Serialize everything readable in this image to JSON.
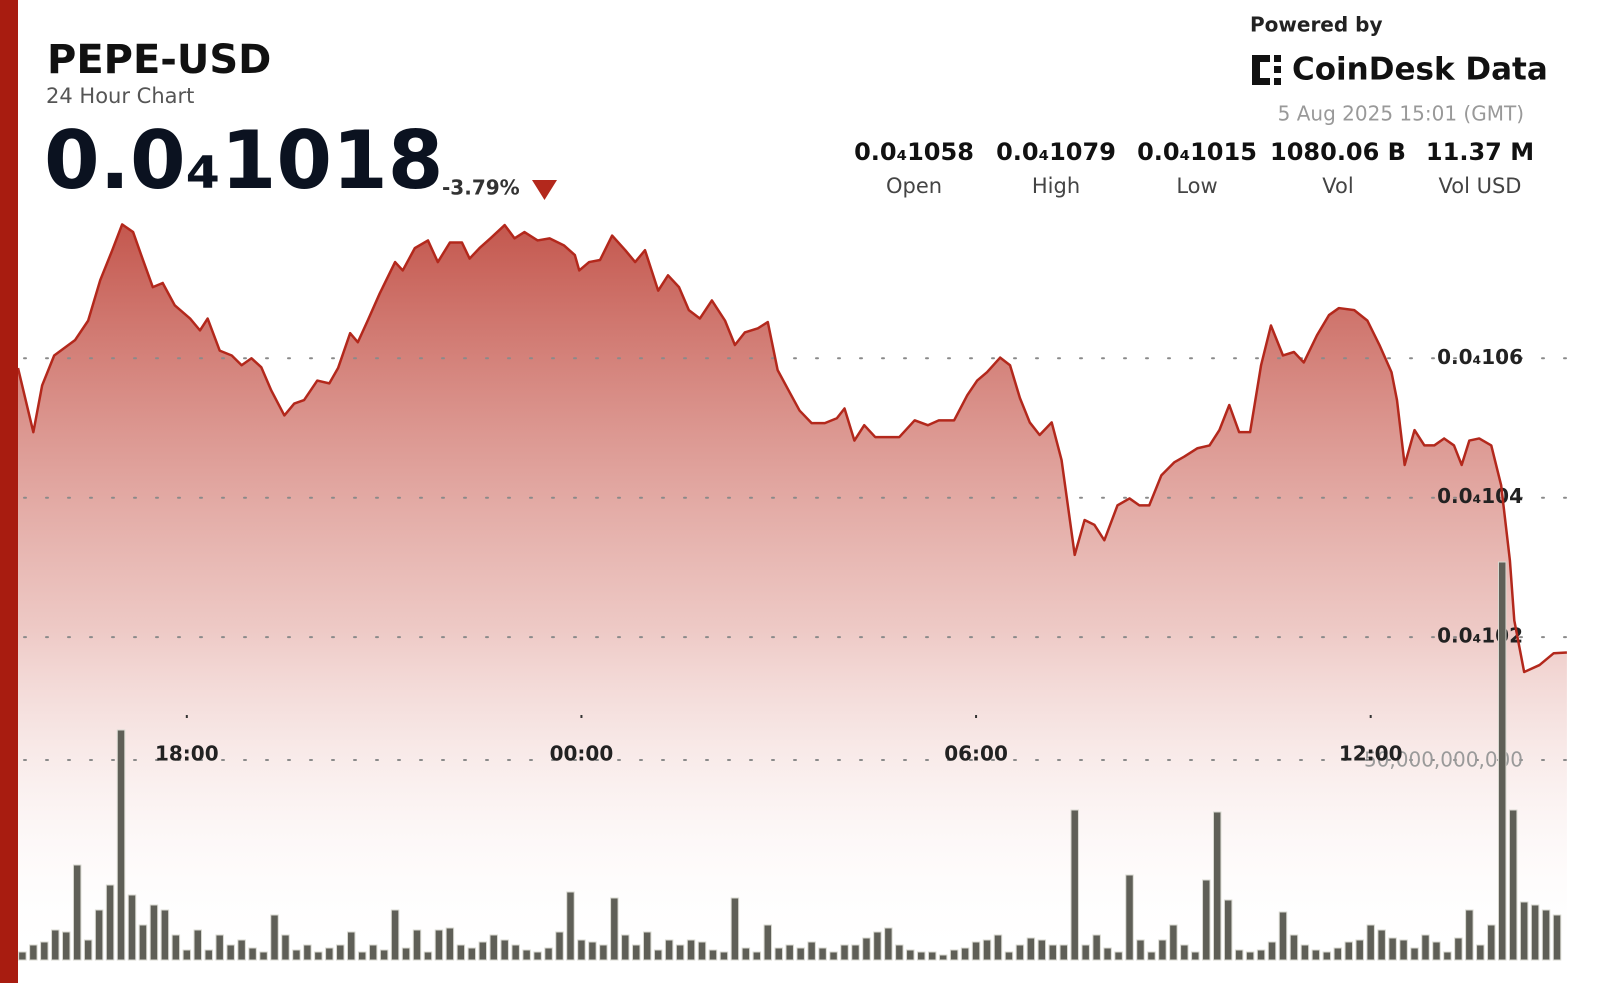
{
  "chart_data": {
    "type": "area",
    "title": "PEPE-USD",
    "subtitle": "24 Hour Chart",
    "price_label": "0.0₄1018",
    "change": "-3.79%",
    "powered_by": "Powered by",
    "brand": "CoinDesk Data",
    "timestamp": "5 Aug 2025 15:01 (GMT)",
    "stats": [
      {
        "value": "0.0₄1058",
        "label": "Open"
      },
      {
        "value": "0.0₄1079",
        "label": "High"
      },
      {
        "value": "0.0₄1015",
        "label": "Low"
      },
      {
        "value": "1080.06 B",
        "label": "Vol"
      },
      {
        "value": "11.37 M",
        "label": "Vol USD"
      }
    ],
    "xlim": [
      26,
      1440
    ],
    "xticks": [
      {
        "value": 180,
        "label": "18:00"
      },
      {
        "value": 540,
        "label": "00:00"
      },
      {
        "value": 900,
        "label": "06:00"
      },
      {
        "value": 1260,
        "label": "12:00"
      }
    ],
    "ylim": [
      9.737e-06,
      1.0827e-05
    ],
    "yticks": [
      {
        "value": 1.02e-05,
        "label": "0.0₄102"
      },
      {
        "value": 1.04e-05,
        "label": "0.0₄104"
      },
      {
        "value": 1.06e-05,
        "label": "0.0₄106"
      }
    ],
    "y2lim": [
      0,
      100000000000.0
    ],
    "y2ticks": [
      {
        "value": 50000000000.0,
        "label": "50,000,000,000"
      }
    ],
    "grid": true,
    "series": [
      {
        "color": "#b3281c",
        "x": [
          26,
          40,
          48,
          59,
          78,
          90,
          101,
          112,
          121,
          131,
          140,
          149,
          158,
          169,
          183,
          192,
          199,
          210,
          221,
          230,
          239,
          248,
          257,
          269,
          278,
          287,
          299,
          310,
          318,
          329,
          336,
          345,
          356,
          370,
          377,
          388,
          400,
          409,
          420,
          431,
          438,
          447,
          457,
          470,
          479,
          488,
          500,
          511,
          524,
          534,
          538,
          547,
          557,
          568,
          580,
          589,
          598,
          610,
          619,
          629,
          638,
          648,
          659,
          671,
          680,
          689,
          701,
          710,
          719,
          730,
          739,
          750,
          762,
          773,
          780,
          789,
          798,
          808,
          830,
          844,
          856,
          866,
          880,
          892,
          901,
          910,
          922,
          931,
          940,
          949,
          958,
          969,
          978,
          990,
          999,
          1008,
          1017,
          1029,
          1040,
          1049,
          1058,
          1069,
          1081,
          1090,
          1102,
          1113,
          1122,
          1131,
          1140,
          1150,
          1160,
          1169,
          1180,
          1190,
          1199,
          1211,
          1222,
          1231,
          1245,
          1257,
          1268,
          1279,
          1284,
          1291,
          1300,
          1309,
          1318,
          1327,
          1336,
          1343,
          1350,
          1359,
          1370,
          1379,
          1387,
          1391,
          1400,
          1414,
          1427,
          1439
        ],
        "values": [
          1.0586e-05,
          1.0494e-05,
          1.0561e-05,
          1.0604e-05,
          1.0626e-05,
          1.0654e-05,
          1.0712e-05,
          1.0755e-05,
          1.0792e-05,
          1.0781e-05,
          1.0741e-05,
          1.0702e-05,
          1.0708e-05,
          1.0676e-05,
          1.0657e-05,
          1.064e-05,
          1.0657e-05,
          1.0611e-05,
          1.0604e-05,
          1.059e-05,
          1.06e-05,
          1.0587e-05,
          1.0554e-05,
          1.0518e-05,
          1.0535e-05,
          1.054e-05,
          1.0568e-05,
          1.0564e-05,
          1.0586e-05,
          1.0636e-05,
          1.0623e-05,
          1.0654e-05,
          1.0693e-05,
          1.0738e-05,
          1.0726e-05,
          1.0758e-05,
          1.0769e-05,
          1.0738e-05,
          1.0766e-05,
          1.0766e-05,
          1.0743e-05,
          1.0758e-05,
          1.0772e-05,
          1.0791e-05,
          1.0772e-05,
          1.0781e-05,
          1.0769e-05,
          1.0772e-05,
          1.0762e-05,
          1.0748e-05,
          1.0726e-05,
          1.0738e-05,
          1.0741e-05,
          1.0776e-05,
          1.0755e-05,
          1.0738e-05,
          1.0755e-05,
          1.0697e-05,
          1.0719e-05,
          1.0702e-05,
          1.0669e-05,
          1.0657e-05,
          1.0683e-05,
          1.0654e-05,
          1.0619e-05,
          1.0637e-05,
          1.0643e-05,
          1.0652e-05,
          1.0583e-05,
          1.0551e-05,
          1.0525e-05,
          1.0507e-05,
          1.0507e-05,
          1.0514e-05,
          1.0528e-05,
          1.0482e-05,
          1.0504e-05,
          1.0487e-05,
          1.0487e-05,
          1.0511e-05,
          1.0504e-05,
          1.0511e-05,
          1.0511e-05,
          1.0547e-05,
          1.0568e-05,
          1.058e-05,
          1.0601e-05,
          1.059e-05,
          1.0543e-05,
          1.0508e-05,
          1.049e-05,
          1.0508e-05,
          1.0454e-05,
          1.0318e-05,
          1.0368e-05,
          1.0361e-05,
          1.0339e-05,
          1.0389e-05,
          1.0399e-05,
          1.0389e-05,
          1.0389e-05,
          1.0432e-05,
          1.0451e-05,
          1.0459e-05,
          1.0471e-05,
          1.0475e-05,
          1.0497e-05,
          1.0533e-05,
          1.0494e-05,
          1.0494e-05,
          1.059e-05,
          1.0647e-05,
          1.0604e-05,
          1.0609e-05,
          1.0594e-05,
          1.0633e-05,
          1.0662e-05,
          1.0672e-05,
          1.0669e-05,
          1.0654e-05,
          1.0619e-05,
          1.058e-05,
          1.054e-05,
          1.0447e-05,
          1.0497e-05,
          1.0475e-05,
          1.0475e-05,
          1.0485e-05,
          1.0475e-05,
          1.0447e-05,
          1.0482e-05,
          1.0485e-05,
          1.0475e-05,
          1.0418e-05,
          1.031e-05,
          1.0224e-05,
          1.015e-05,
          1.016e-05,
          1.0177e-05,
          1.0178e-05
        ]
      },
      {
        "type": "bar",
        "axis": "y2",
        "color": "#5f5f57",
        "x": [
          30,
          40,
          50,
          60,
          70,
          80,
          90,
          100,
          110,
          120,
          130,
          140,
          150,
          160,
          170,
          180,
          190,
          200,
          210,
          220,
          230,
          240,
          250,
          260,
          270,
          280,
          290,
          300,
          310,
          320,
          330,
          340,
          350,
          360,
          370,
          380,
          390,
          400,
          410,
          420,
          430,
          440,
          450,
          460,
          470,
          480,
          490,
          500,
          510,
          520,
          530,
          540,
          550,
          560,
          570,
          580,
          590,
          600,
          610,
          620,
          630,
          640,
          650,
          660,
          670,
          680,
          690,
          700,
          710,
          720,
          730,
          740,
          750,
          760,
          770,
          780,
          790,
          800,
          810,
          820,
          830,
          840,
          850,
          860,
          870,
          880,
          890,
          900,
          910,
          920,
          930,
          940,
          950,
          960,
          970,
          980,
          990,
          1000,
          1010,
          1020,
          1030,
          1040,
          1050,
          1060,
          1070,
          1080,
          1090,
          1100,
          1110,
          1120,
          1130,
          1140,
          1150,
          1160,
          1170,
          1180,
          1190,
          1200,
          1210,
          1220,
          1230,
          1240,
          1250,
          1260,
          1270,
          1280,
          1290,
          1300,
          1310,
          1320,
          1330,
          1340,
          1350,
          1360,
          1370,
          1380,
          1390,
          1400,
          1410,
          1420,
          1430
        ],
        "values": [
          2000000000.0,
          3750000000.0,
          4500000000.0,
          7500000000.0,
          7000000000.0,
          23750000000.0,
          5000000000.0,
          12500000000.0,
          18750000000.0,
          57500000000.0,
          16250000000.0,
          8750000000.0,
          13750000000.0,
          12500000000.0,
          6250000000.0,
          2500000000.0,
          7500000000.0,
          2500000000.0,
          6250000000.0,
          3750000000.0,
          5000000000.0,
          3000000000.0,
          2000000000.0,
          11250000000.0,
          6250000000.0,
          2500000000.0,
          3750000000.0,
          2000000000.0,
          3000000000.0,
          3750000000.0,
          7000000000.0,
          2000000000.0,
          3750000000.0,
          2500000000.0,
          12500000000.0,
          3000000000.0,
          7500000000.0,
          2000000000.0,
          7500000000.0,
          8000000000.0,
          3750000000.0,
          3000000000.0,
          4500000000.0,
          6250000000.0,
          5000000000.0,
          3750000000.0,
          2500000000.0,
          2000000000.0,
          3000000000.0,
          7000000000.0,
          17000000000.0,
          5000000000.0,
          4500000000.0,
          3750000000.0,
          15500000000.0,
          6250000000.0,
          3750000000.0,
          7000000000.0,
          2500000000.0,
          5000000000.0,
          3750000000.0,
          5000000000.0,
          4500000000.0,
          2500000000.0,
          2000000000.0,
          15500000000.0,
          3000000000.0,
          2000000000.0,
          8750000000.0,
          3000000000.0,
          3750000000.0,
          3000000000.0,
          4500000000.0,
          3000000000.0,
          2000000000.0,
          3750000000.0,
          3750000000.0,
          5500000000.0,
          7000000000.0,
          8000000000.0,
          3750000000.0,
          2500000000.0,
          2000000000.0,
          2000000000.0,
          1250000000.0,
          2500000000.0,
          3000000000.0,
          4500000000.0,
          5000000000.0,
          6250000000.0,
          2000000000.0,
          3750000000.0,
          5500000000.0,
          5000000000.0,
          3750000000.0,
          3750000000.0,
          37500000000.0,
          3750000000.0,
          6250000000.0,
          3000000000.0,
          2000000000.0,
          21250000000.0,
          5000000000.0,
          2000000000.0,
          5000000000.0,
          8750000000.0,
          3750000000.0,
          2000000000.0,
          20000000000.0,
          37000000000.0,
          15000000000.0,
          2500000000.0,
          2000000000.0,
          2500000000.0,
          4500000000.0,
          12000000000.0,
          6250000000.0,
          3750000000.0,
          2500000000.0,
          2000000000.0,
          3000000000.0,
          4500000000.0,
          5000000000.0,
          8750000000.0,
          7500000000.0,
          5500000000.0,
          5000000000.0,
          3000000000.0,
          6250000000.0,
          4500000000.0,
          2000000000.0,
          5500000000.0,
          12500000000.0,
          3750000000.0,
          8750000000.0,
          99500000000.0,
          37500000000.0,
          14500000000.0,
          13750000000.0,
          12500000000.0,
          11250000000.0
        ]
      }
    ]
  }
}
